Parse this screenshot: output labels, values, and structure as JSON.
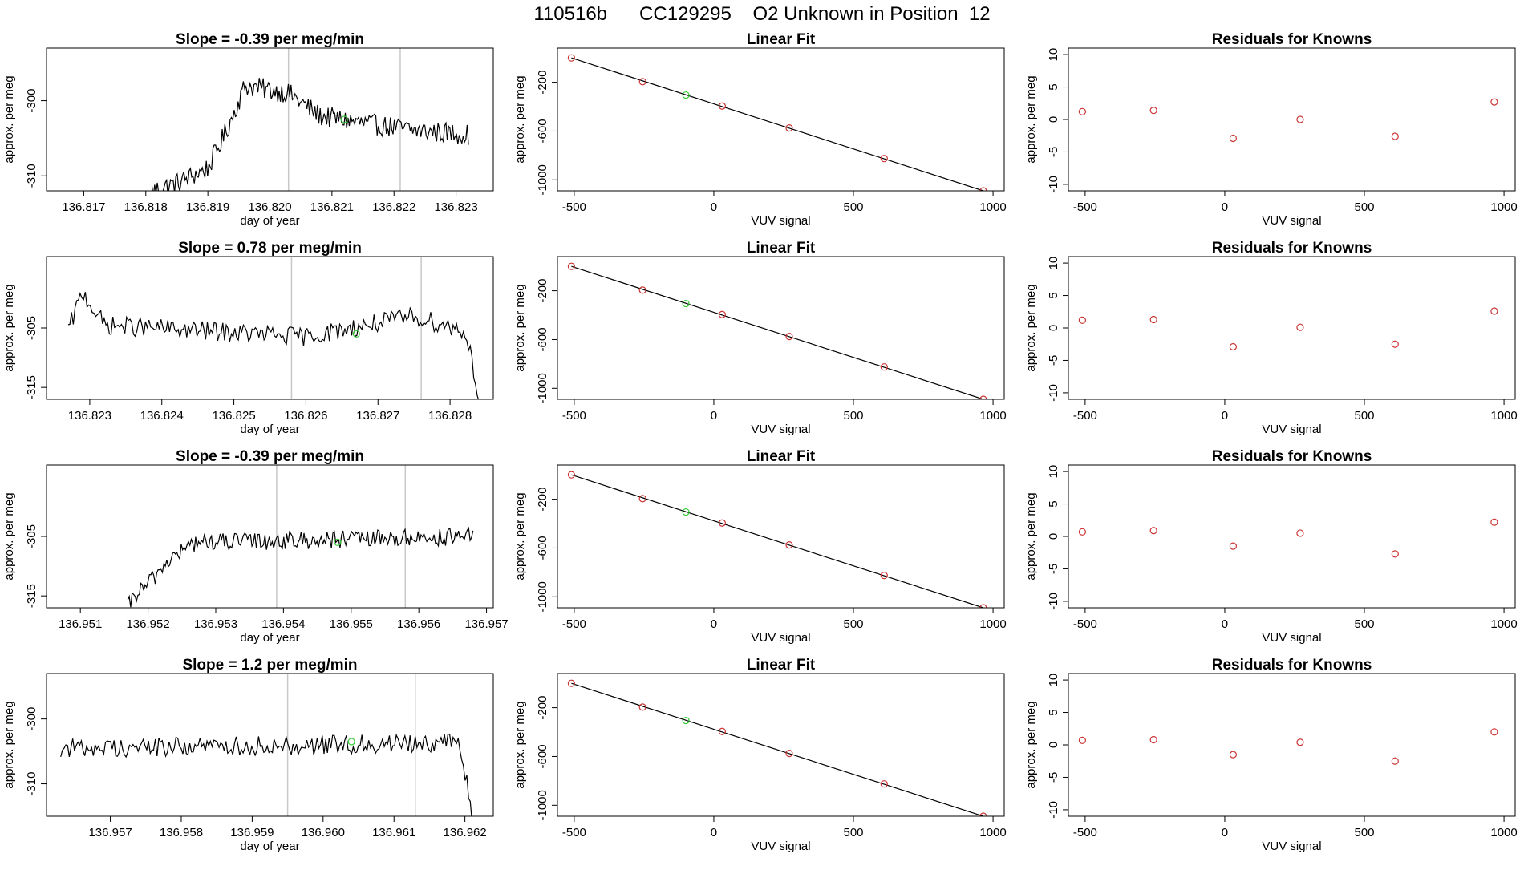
{
  "title": "110516b      CC129295    O2 Unknown in Position  12",
  "colors": {
    "line": "#000000",
    "points": "#cc3333",
    "unknown": "#33cc33",
    "marker": "#c8c8c8",
    "frame": "#000000"
  },
  "chart_data": [
    {
      "panel": "timeseries",
      "type": "line",
      "title": "Slope =  -0.39  per meg/min",
      "xlabel": "day of year",
      "ylabel": "approx. per meg",
      "xlim": [
        136.8164,
        136.8236
      ],
      "ylim": [
        -312.0,
        -293.0
      ],
      "xticks": [
        136.817,
        136.818,
        136.819,
        136.82,
        136.821,
        136.822,
        136.823
      ],
      "xtick_labels": [
        "136.817",
        "136.818",
        "136.819",
        "136.820",
        "136.821",
        "136.822",
        "136.823"
      ],
      "yticks": [
        -300,
        -310
      ],
      "ytick_labels": [
        "-300",
        "-310"
      ],
      "vlines": [
        136.8203,
        136.8221
      ],
      "unknown_point": [
        136.8212,
        -302.5
      ],
      "series_x_range": [
        136.8181,
        136.8232
      ],
      "series_y_knots": [
        [
          136.8181,
          -312.0
        ],
        [
          136.8185,
          -311.0
        ],
        [
          136.819,
          -309.0
        ],
        [
          136.8193,
          -304.0
        ],
        [
          136.8196,
          -298.0
        ],
        [
          136.8203,
          -299.0
        ],
        [
          136.8208,
          -302.0
        ],
        [
          136.8215,
          -303.0
        ],
        [
          136.8224,
          -304.0
        ],
        [
          136.8232,
          -304.5
        ]
      ],
      "noise_amp": 1.4
    },
    {
      "panel": "linear_fit",
      "type": "scatter",
      "title": "Linear Fit",
      "xlabel": "VUV signal",
      "ylabel": "approx. per meg",
      "xlim": [
        -560,
        1040
      ],
      "ylim": [
        -1090,
        80
      ],
      "xticks": [
        -500,
        0,
        500,
        1000
      ],
      "xtick_labels": [
        "-500",
        "0",
        "500",
        "1000"
      ],
      "yticks": [
        -200,
        -600,
        -1000
      ],
      "ytick_labels": [
        "-200",
        "-600",
        "-1000"
      ],
      "points": [
        [
          -510,
          0
        ],
        [
          -255,
          -195
        ],
        [
          30,
          -395
        ],
        [
          270,
          -575
        ],
        [
          610,
          -825
        ],
        [
          965,
          -1090
        ]
      ],
      "unknown_point": [
        -100,
        -305
      ],
      "fit_line": [
        [
          -510,
          0
        ],
        [
          965,
          -1090
        ]
      ]
    },
    {
      "panel": "residuals",
      "type": "scatter",
      "title": "Residuals for Knowns",
      "xlabel": "VUV signal",
      "ylabel": "approx. per meg",
      "xlim": [
        -560,
        1040
      ],
      "ylim": [
        -11,
        11
      ],
      "xticks": [
        -500,
        0,
        500,
        1000
      ],
      "xtick_labels": [
        "-500",
        "0",
        "500",
        "1000"
      ],
      "yticks": [
        10,
        5,
        0,
        -5,
        -10
      ],
      "ytick_labels": [
        "10",
        "5",
        "0",
        "-5",
        "-10"
      ],
      "points": [
        [
          -510,
          1.2
        ],
        [
          -255,
          1.4
        ],
        [
          30,
          -2.9
        ],
        [
          270,
          0.0
        ],
        [
          610,
          -2.6
        ],
        [
          965,
          2.7
        ]
      ]
    },
    {
      "panel": "timeseries",
      "type": "line",
      "title": "Slope =  0.78  per meg/min",
      "xlabel": "day of year",
      "ylabel": "approx. per meg",
      "xlim": [
        136.8224,
        136.8286
      ],
      "ylim": [
        -317.0,
        -293.0
      ],
      "xticks": [
        136.823,
        136.824,
        136.825,
        136.826,
        136.827,
        136.828
      ],
      "xtick_labels": [
        "136.823",
        "136.824",
        "136.825",
        "136.826",
        "136.827",
        "136.828"
      ],
      "yticks": [
        -305,
        -315
      ],
      "ytick_labels": [
        "-305",
        "-315"
      ],
      "vlines": [
        136.8258,
        136.8276
      ],
      "unknown_point": [
        136.8267,
        -306.0
      ],
      "series_x_range": [
        136.8227,
        136.8284
      ],
      "series_y_knots": [
        [
          136.8227,
          -305.5
        ],
        [
          136.8229,
          -299.0
        ],
        [
          136.8232,
          -304.5
        ],
        [
          136.826,
          -306.5
        ],
        [
          136.8275,
          -303.0
        ],
        [
          136.8282,
          -305.5
        ],
        [
          136.8283,
          -310.0
        ],
        [
          136.8284,
          -317.0
        ]
      ],
      "noise_amp": 1.6
    },
    {
      "panel": "linear_fit",
      "type": "scatter",
      "title": "Linear Fit",
      "xlabel": "VUV signal",
      "ylabel": "approx. per meg",
      "xlim": [
        -560,
        1040
      ],
      "ylim": [
        -1090,
        80
      ],
      "xticks": [
        -500,
        0,
        500,
        1000
      ],
      "xtick_labels": [
        "-500",
        "0",
        "500",
        "1000"
      ],
      "yticks": [
        -200,
        -600,
        -1000
      ],
      "ytick_labels": [
        "-200",
        "-600",
        "-1000"
      ],
      "points": [
        [
          -510,
          0
        ],
        [
          -255,
          -195
        ],
        [
          30,
          -395
        ],
        [
          270,
          -575
        ],
        [
          610,
          -825
        ],
        [
          965,
          -1090
        ]
      ],
      "unknown_point": [
        -100,
        -305
      ],
      "fit_line": [
        [
          -510,
          0
        ],
        [
          965,
          -1090
        ]
      ]
    },
    {
      "panel": "residuals",
      "type": "scatter",
      "title": "Residuals for Knowns",
      "xlabel": "VUV signal",
      "ylabel": "approx. per meg",
      "xlim": [
        -560,
        1040
      ],
      "ylim": [
        -11,
        11
      ],
      "xticks": [
        -500,
        0,
        500,
        1000
      ],
      "xtick_labels": [
        "-500",
        "0",
        "500",
        "1000"
      ],
      "yticks": [
        10,
        5,
        0,
        -5,
        -10
      ],
      "ytick_labels": [
        "10",
        "5",
        "0",
        "-5",
        "-10"
      ],
      "points": [
        [
          -510,
          1.2
        ],
        [
          -255,
          1.3
        ],
        [
          30,
          -2.9
        ],
        [
          270,
          0.1
        ],
        [
          610,
          -2.5
        ],
        [
          965,
          2.6
        ]
      ]
    },
    {
      "panel": "timeseries",
      "type": "line",
      "title": "Slope =  -0.39  per meg/min",
      "xlabel": "day of year",
      "ylabel": "approx. per meg",
      "xlim": [
        136.9505,
        136.9571
      ],
      "ylim": [
        -317.0,
        -293.0
      ],
      "xticks": [
        136.951,
        136.952,
        136.953,
        136.954,
        136.955,
        136.956,
        136.957
      ],
      "xtick_labels": [
        "136.951",
        "136.952",
        "136.953",
        "136.954",
        "136.955",
        "136.956",
        "136.957"
      ],
      "yticks": [
        -305,
        -315
      ],
      "ytick_labels": [
        "-305",
        "-315"
      ],
      "vlines": [
        136.9539,
        136.9558
      ],
      "unknown_point": [
        136.9548,
        -306.0
      ],
      "series_x_range": [
        136.9517,
        136.9568
      ],
      "series_y_knots": [
        [
          136.9517,
          -317.0
        ],
        [
          136.9518,
          -315.0
        ],
        [
          136.952,
          -313.0
        ],
        [
          136.9523,
          -309.0
        ],
        [
          136.9527,
          -306.0
        ],
        [
          136.955,
          -305.5
        ],
        [
          136.9568,
          -305.0
        ]
      ],
      "noise_amp": 1.5
    },
    {
      "panel": "linear_fit",
      "type": "scatter",
      "title": "Linear Fit",
      "xlabel": "VUV signal",
      "ylabel": "approx. per meg",
      "xlim": [
        -560,
        1040
      ],
      "ylim": [
        -1090,
        80
      ],
      "xticks": [
        -500,
        0,
        500,
        1000
      ],
      "xtick_labels": [
        "-500",
        "0",
        "500",
        "1000"
      ],
      "yticks": [
        -200,
        -600,
        -1000
      ],
      "ytick_labels": [
        "-200",
        "-600",
        "-1000"
      ],
      "points": [
        [
          -510,
          0
        ],
        [
          -255,
          -195
        ],
        [
          30,
          -395
        ],
        [
          270,
          -575
        ],
        [
          610,
          -825
        ],
        [
          965,
          -1090
        ]
      ],
      "unknown_point": [
        -100,
        -305
      ],
      "fit_line": [
        [
          -510,
          0
        ],
        [
          965,
          -1090
        ]
      ]
    },
    {
      "panel": "residuals",
      "type": "scatter",
      "title": "Residuals for Knowns",
      "xlabel": "VUV signal",
      "ylabel": "approx. per meg",
      "xlim": [
        -560,
        1040
      ],
      "ylim": [
        -11,
        11
      ],
      "xticks": [
        -500,
        0,
        500,
        1000
      ],
      "xtick_labels": [
        "-500",
        "0",
        "500",
        "1000"
      ],
      "yticks": [
        10,
        5,
        0,
        -5,
        -10
      ],
      "ytick_labels": [
        "10",
        "5",
        "0",
        "-5",
        "-10"
      ],
      "points": [
        [
          -510,
          0.7
        ],
        [
          -255,
          0.9
        ],
        [
          30,
          -1.5
        ],
        [
          270,
          0.5
        ],
        [
          610,
          -2.7
        ],
        [
          965,
          2.2
        ]
      ]
    },
    {
      "panel": "timeseries",
      "type": "line",
      "title": "Slope =  1.2  per meg/min",
      "xlabel": "day of year",
      "ylabel": "approx. per meg",
      "xlim": [
        136.9561,
        136.9624
      ],
      "ylim": [
        -315.0,
        -293.0
      ],
      "xticks": [
        136.957,
        136.958,
        136.959,
        136.96,
        136.961,
        136.962
      ],
      "xtick_labels": [
        "136.957",
        "136.958",
        "136.959",
        "136.960",
        "136.961",
        "136.962"
      ],
      "yticks": [
        -300,
        -310
      ],
      "ytick_labels": [
        "-300",
        "-310"
      ],
      "vlines": [
        136.9595,
        136.9613
      ],
      "unknown_point": [
        136.9604,
        -303.5
      ],
      "series_x_range": [
        136.9563,
        136.9621
      ],
      "series_y_knots": [
        [
          136.9563,
          -304.5
        ],
        [
          136.96,
          -304.0
        ],
        [
          136.9619,
          -303.5
        ],
        [
          136.962,
          -308.0
        ],
        [
          136.9621,
          -315.0
        ]
      ],
      "noise_amp": 1.5
    },
    {
      "panel": "linear_fit",
      "type": "scatter",
      "title": "Linear Fit",
      "xlabel": "VUV signal",
      "ylabel": "approx. per meg",
      "xlim": [
        -560,
        1040
      ],
      "ylim": [
        -1090,
        80
      ],
      "xticks": [
        -500,
        0,
        500,
        1000
      ],
      "xtick_labels": [
        "-500",
        "0",
        "500",
        "1000"
      ],
      "yticks": [
        -200,
        -600,
        -1000
      ],
      "ytick_labels": [
        "-200",
        "-600",
        "-1000"
      ],
      "points": [
        [
          -510,
          0
        ],
        [
          -255,
          -195
        ],
        [
          30,
          -395
        ],
        [
          270,
          -575
        ],
        [
          610,
          -825
        ],
        [
          965,
          -1090
        ]
      ],
      "unknown_point": [
        -100,
        -305
      ],
      "fit_line": [
        [
          -510,
          0
        ],
        [
          965,
          -1090
        ]
      ]
    },
    {
      "panel": "residuals",
      "type": "scatter",
      "title": "Residuals for Knowns",
      "xlabel": "VUV signal",
      "ylabel": "approx. per meg",
      "xlim": [
        -560,
        1040
      ],
      "ylim": [
        -11,
        11
      ],
      "xticks": [
        -500,
        0,
        500,
        1000
      ],
      "xtick_labels": [
        "-500",
        "0",
        "500",
        "1000"
      ],
      "yticks": [
        10,
        5,
        0,
        -5,
        -10
      ],
      "ytick_labels": [
        "10",
        "5",
        "0",
        "-5",
        "-10"
      ],
      "points": [
        [
          -510,
          0.7
        ],
        [
          -255,
          0.8
        ],
        [
          30,
          -1.5
        ],
        [
          270,
          0.4
        ],
        [
          610,
          -2.5
        ],
        [
          965,
          2.0
        ]
      ]
    }
  ]
}
